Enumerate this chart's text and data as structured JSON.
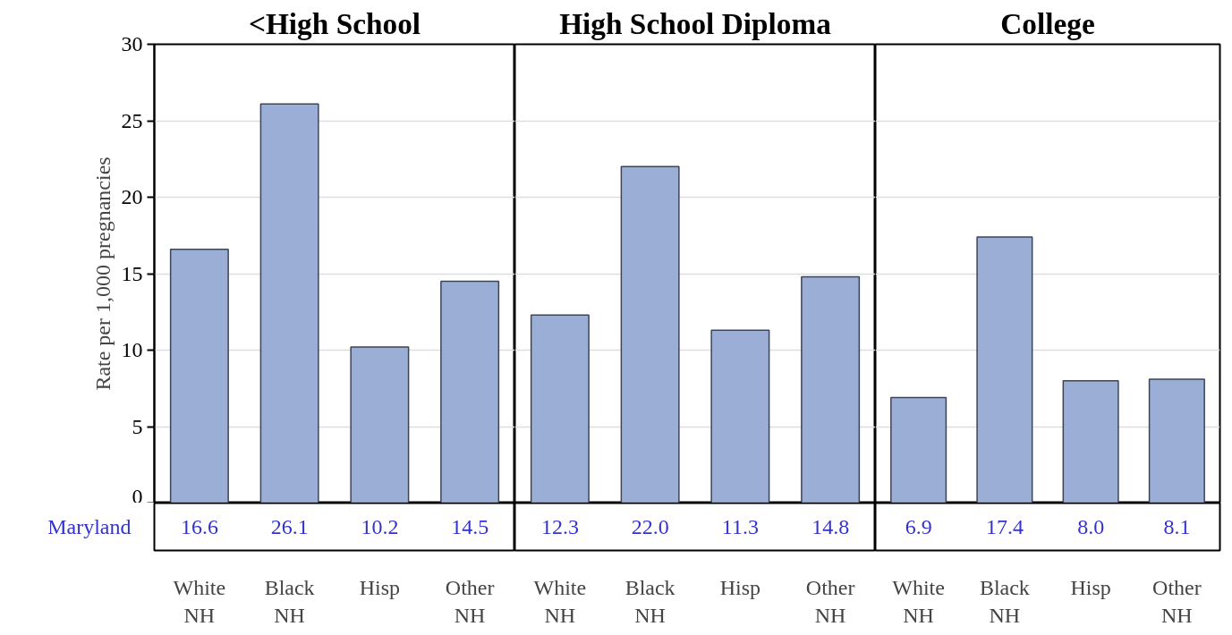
{
  "chart_data": [
    {
      "type": "bar",
      "title": "<High School",
      "ylabel": "Rate per 1,000 pregnancies",
      "categories": [
        "White\nNH",
        "Black\nNH",
        "Hisp",
        "Other\nNH"
      ],
      "values": [
        16.6,
        26.1,
        10.2,
        14.5
      ],
      "value_labels": [
        "16.6",
        "26.1",
        "10.2",
        "14.5"
      ],
      "color": "#9aaed6",
      "ylim": [
        0,
        30
      ],
      "yticks": [
        0,
        5,
        10,
        15,
        20,
        25,
        30
      ],
      "grid": "y",
      "annotations": [
        "Maryland"
      ]
    },
    {
      "type": "bar",
      "title": "High School Diploma",
      "categories": [
        "White\nNH",
        "Black\nNH",
        "Hisp",
        "Other\nNH"
      ],
      "values": [
        12.3,
        22.0,
        11.3,
        14.8
      ],
      "value_labels": [
        "12.3",
        "22.0",
        "11.3",
        "14.8"
      ],
      "color": "#9aaed6",
      "ylim": [
        0,
        30
      ],
      "yticks": [
        0,
        5,
        10,
        15,
        20,
        25,
        30
      ],
      "grid": "y",
      "tick_labels": "x"
    },
    {
      "type": "bar",
      "title": "College",
      "categories": [
        "White\nNH",
        "Black\nNH",
        "Hisp",
        "Other\nNH"
      ],
      "values": [
        6.9,
        17.4,
        8.0,
        8.1
      ],
      "value_labels": [
        "6.9",
        "17.4",
        "8.0",
        "8.1"
      ],
      "color": "#9aaed6",
      "ylim": [
        0,
        30
      ],
      "yticks": [
        0,
        5,
        10,
        15,
        20,
        25,
        30
      ],
      "grid": "y",
      "tick_labels": "x"
    }
  ]
}
